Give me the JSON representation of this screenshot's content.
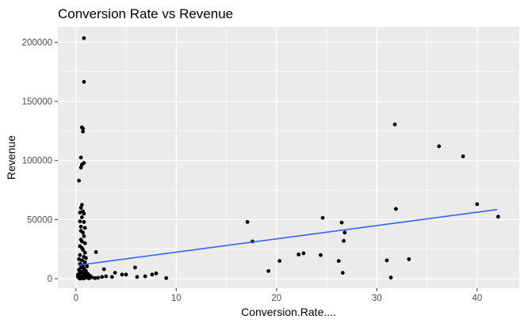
{
  "chart_data": {
    "type": "scatter",
    "title": "Conversion Rate vs Revenue",
    "xlabel": "Conversion.Rate....",
    "ylabel": "Revenue",
    "xlim": [
      -1.8,
      44.2
    ],
    "ylim": [
      -8000,
      213000
    ],
    "x_ticks": [
      0,
      10,
      20,
      30,
      40
    ],
    "x_tick_labels": [
      "0",
      "10",
      "20",
      "30",
      "40"
    ],
    "y_ticks": [
      0,
      50000,
      100000,
      150000,
      200000
    ],
    "y_tick_labels": [
      "0",
      "50000",
      "100000",
      "150000",
      "200000"
    ],
    "grid": true,
    "legend": "none",
    "colors": {
      "panel": "#ebebeb",
      "grid": "#ffffff",
      "point": "#000000",
      "trend": "#3366ff"
    },
    "trend_line": {
      "x": [
        0.3,
        42
      ],
      "y": [
        11500,
        58500
      ]
    },
    "points": [
      [
        0.8,
        203500
      ],
      [
        0.8,
        166500
      ],
      [
        0.6,
        128000
      ],
      [
        0.7,
        127000
      ],
      [
        0.7,
        124500
      ],
      [
        0.5,
        102500
      ],
      [
        0.8,
        98000
      ],
      [
        0.6,
        96500
      ],
      [
        0.5,
        94000
      ],
      [
        0.3,
        83000
      ],
      [
        0.6,
        62500
      ],
      [
        0.5,
        60000
      ],
      [
        0.7,
        57000
      ],
      [
        0.4,
        56000
      ],
      [
        0.8,
        55000
      ],
      [
        0.6,
        52000
      ],
      [
        0.4,
        48500
      ],
      [
        0.8,
        48000
      ],
      [
        0.5,
        44000
      ],
      [
        0.9,
        43000
      ],
      [
        0.5,
        40500
      ],
      [
        0.7,
        39000
      ],
      [
        0.8,
        36000
      ],
      [
        0.5,
        33000
      ],
      [
        0.6,
        31500
      ],
      [
        0.9,
        30000
      ],
      [
        0.4,
        27500
      ],
      [
        0.6,
        26000
      ],
      [
        0.7,
        24500
      ],
      [
        0.9,
        22000
      ],
      [
        0.4,
        20000
      ],
      [
        0.8,
        18500
      ],
      [
        1.0,
        17500
      ],
      [
        0.3,
        16500
      ],
      [
        0.6,
        15500
      ],
      [
        0.9,
        14000
      ],
      [
        0.4,
        12500
      ],
      [
        0.7,
        11500
      ],
      [
        1.1,
        10500
      ],
      [
        0.5,
        9500
      ],
      [
        0.8,
        8500
      ],
      [
        0.3,
        7500
      ],
      [
        1.0,
        6500
      ],
      [
        0.6,
        6000
      ],
      [
        0.4,
        5000
      ],
      [
        0.9,
        4500
      ],
      [
        1.2,
        4000
      ],
      [
        0.2,
        3500
      ],
      [
        0.7,
        3000
      ],
      [
        1.4,
        2500
      ],
      [
        0.5,
        2000
      ],
      [
        0.9,
        1500
      ],
      [
        1.1,
        1000
      ],
      [
        0.3,
        800
      ],
      [
        0.6,
        500
      ],
      [
        1.6,
        1200
      ],
      [
        1.9,
        500
      ],
      [
        2.2,
        800
      ],
      [
        2.6,
        1500
      ],
      [
        3.0,
        2000
      ],
      [
        1.3,
        300
      ],
      [
        0.8,
        200
      ],
      [
        0.4,
        100
      ],
      [
        0.2,
        1800
      ],
      [
        1.0,
        2800
      ],
      [
        2.0,
        22500
      ],
      [
        2.8,
        8000
      ],
      [
        3.6,
        1500
      ],
      [
        3.9,
        5000
      ],
      [
        4.6,
        3500
      ],
      [
        5.0,
        3500
      ],
      [
        5.9,
        9500
      ],
      [
        6.1,
        1500
      ],
      [
        6.9,
        2000
      ],
      [
        7.6,
        3500
      ],
      [
        8.0,
        4500
      ],
      [
        9.0,
        500
      ],
      [
        17.1,
        48000
      ],
      [
        17.6,
        31500
      ],
      [
        19.2,
        6500
      ],
      [
        20.3,
        15000
      ],
      [
        22.2,
        20500
      ],
      [
        22.7,
        21500
      ],
      [
        24.4,
        20000
      ],
      [
        24.6,
        51500
      ],
      [
        26.2,
        15000
      ],
      [
        26.5,
        47500
      ],
      [
        26.6,
        5000
      ],
      [
        26.7,
        32000
      ],
      [
        26.8,
        39000
      ],
      [
        31.0,
        15500
      ],
      [
        31.4,
        1000
      ],
      [
        31.8,
        130500
      ],
      [
        31.9,
        59000
      ],
      [
        33.2,
        16500
      ],
      [
        36.2,
        112000
      ],
      [
        38.6,
        103500
      ],
      [
        40.0,
        63000
      ],
      [
        42.1,
        52500
      ]
    ]
  }
}
